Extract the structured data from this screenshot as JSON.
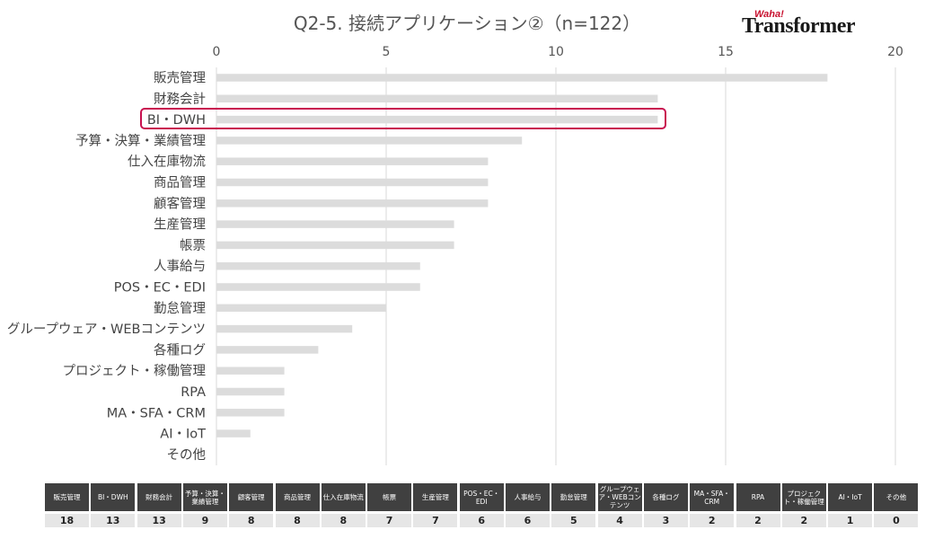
{
  "title": "Q2-5. 接続アプリケーション②（n=122）",
  "logo": {
    "small": "Waha!",
    "big": "Transformer"
  },
  "highlight_category": "BI・DWH",
  "colors": {
    "bar": "#dcdcdc",
    "highlight": "#c8104f",
    "table_header": "#404040",
    "table_value": "#e6e6e6"
  },
  "chart_data": {
    "type": "bar",
    "orientation": "horizontal",
    "categories": [
      "販売管理",
      "財務会計",
      "BI・DWH",
      "予算・決算・業績管理",
      "仕入在庫物流",
      "商品管理",
      "顧客管理",
      "生産管理",
      "帳票",
      "人事給与",
      "POS・EC・EDI",
      "勤怠管理",
      "グループウェア・WEBコンテンツ",
      "各種ログ",
      "プロジェクト・稼働管理",
      "RPA",
      "MA・SFA・CRM",
      "AI・IoT",
      "その他"
    ],
    "values": [
      18,
      13,
      13,
      9,
      8,
      8,
      8,
      7,
      7,
      6,
      6,
      5,
      4,
      3,
      2,
      2,
      2,
      1,
      0
    ],
    "xlim": [
      0,
      20
    ],
    "xticks": [
      "0",
      "5",
      "10",
      "15",
      "20"
    ],
    "grid": true,
    "legend": "none"
  },
  "table": {
    "headers": [
      "販売管理",
      "BI・DWH",
      "財務会計",
      "予算・決算・業績管理",
      "顧客管理",
      "商品管理",
      "仕入在庫物流",
      "帳票",
      "生産管理",
      "POS・EC・EDI",
      "人事給与",
      "勤怠管理",
      "グループウェア・WEBコンテンツ",
      "各種ログ",
      "MA・SFA・CRM",
      "RPA",
      "プロジェクト・稼働管理",
      "AI・IoT",
      "その他"
    ],
    "values": [
      "18",
      "13",
      "13",
      "9",
      "8",
      "8",
      "8",
      "7",
      "7",
      "6",
      "6",
      "5",
      "4",
      "3",
      "2",
      "2",
      "2",
      "1",
      "0"
    ]
  }
}
